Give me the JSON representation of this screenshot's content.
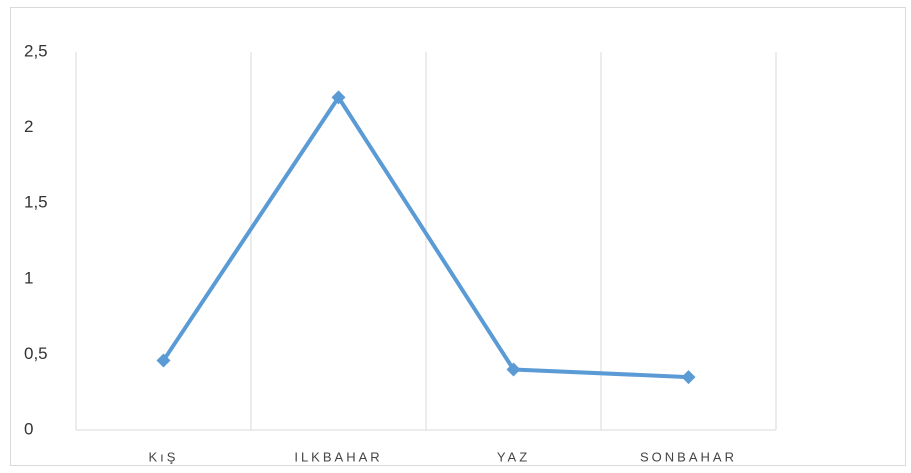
{
  "chart_data": {
    "type": "line",
    "categories": [
      "KıŞ",
      "ILKBAHAR",
      "YAZ",
      "SONBAHAR"
    ],
    "series": [
      {
        "name": null,
        "color": "#5b9bd5",
        "values": [
          0.46,
          2.2,
          0.4,
          0.35
        ]
      }
    ],
    "ylim": [
      0,
      2.5
    ],
    "yticks": [
      0,
      {
        "value": 0.5,
        "label": "0,5"
      },
      1,
      {
        "value": 1.5,
        "label": "1,5"
      },
      2,
      {
        "value": 2.5,
        "label": "2,5"
      }
    ],
    "grid": "vertical"
  }
}
